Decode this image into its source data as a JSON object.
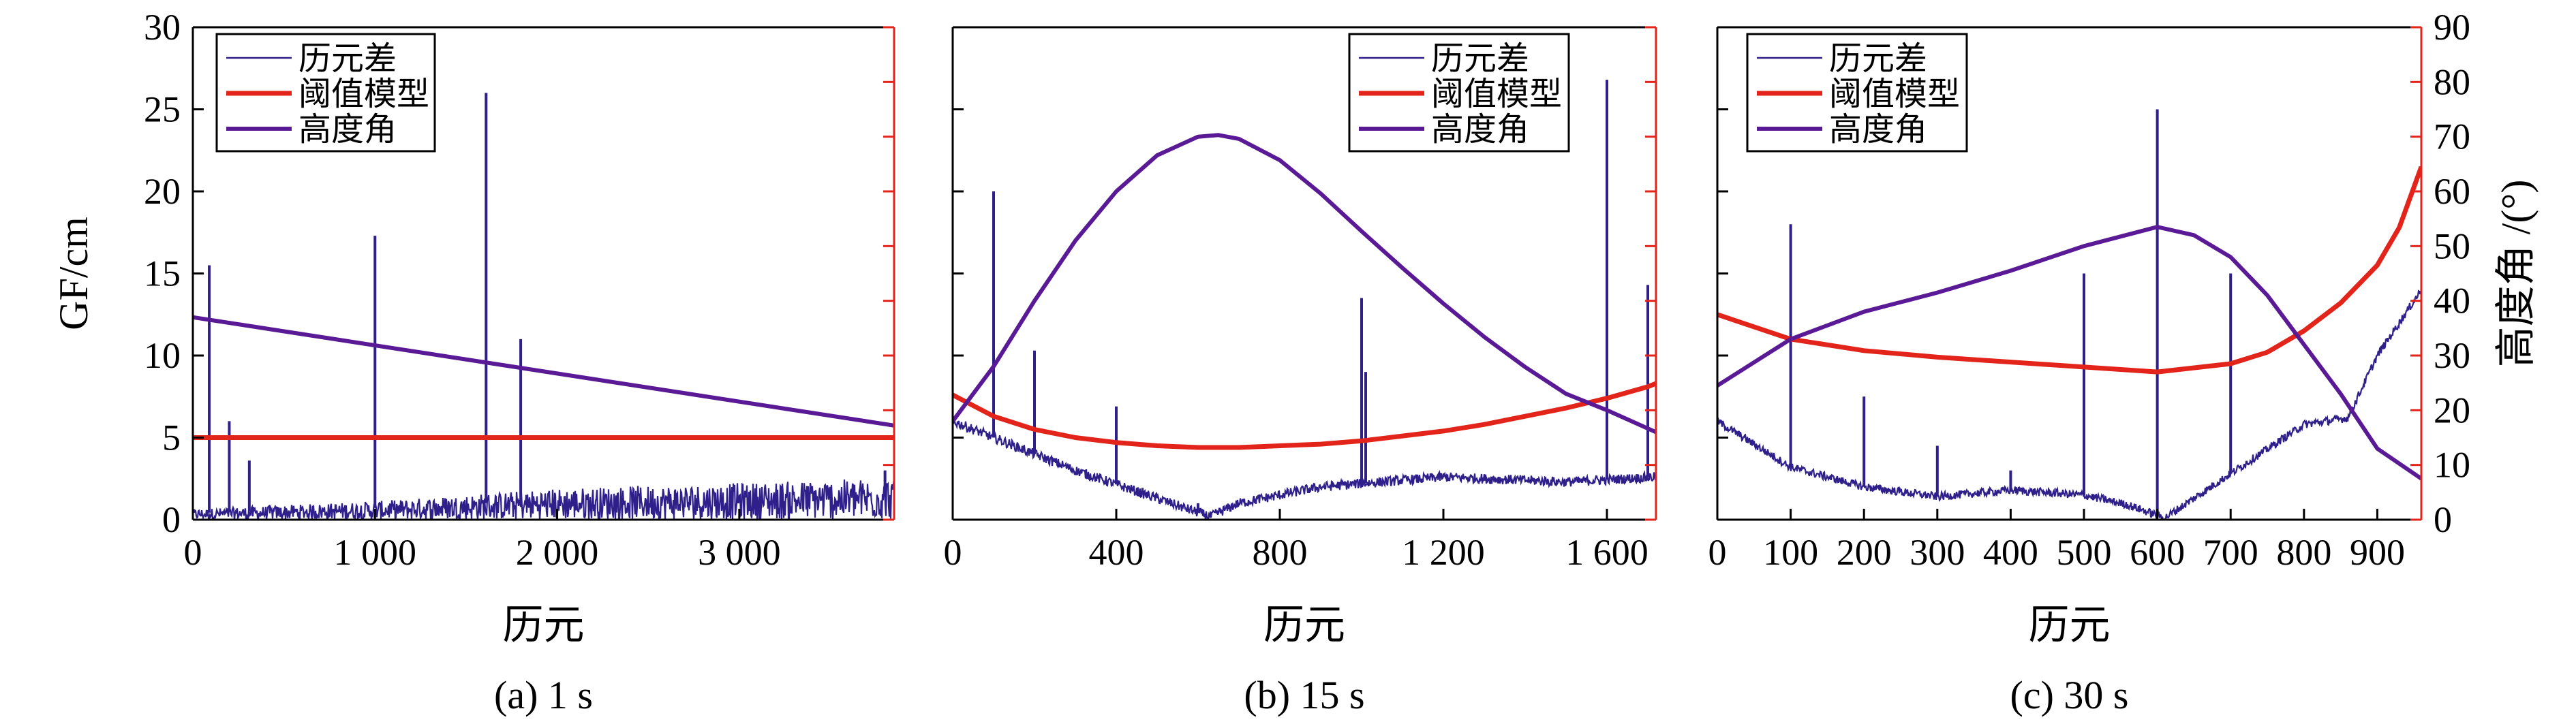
{
  "colors": {
    "difference": "#2e1f8a",
    "threshold": "#e3241b",
    "elevation": "#5a1a96",
    "right_axis": "#e3241b"
  },
  "chart_data": [
    {
      "type": "line",
      "caption": "(a) 1 s",
      "xlabel": "历元",
      "ylabel": "GF/cm",
      "xlim": [
        0,
        3850
      ],
      "ylim": [
        0,
        30
      ],
      "y2lim": [
        0,
        90
      ],
      "xticks": [
        0,
        1000,
        2000,
        3000
      ],
      "xtick_labels": [
        "0",
        "1 000",
        "2 000",
        "3 000"
      ],
      "yticks": [
        0,
        5,
        10,
        15,
        20,
        25,
        30
      ],
      "ytick_labels": [
        "0",
        "5",
        "10",
        "15",
        "20",
        "25",
        "30"
      ],
      "show_left_tick_labels": true,
      "show_right_tick_labels": false,
      "legend": [
        "历元差",
        "阈值模型",
        "高度角"
      ],
      "legend_position": "top-left",
      "series": [
        {
          "name": "历元差",
          "role": "difference",
          "baseline": [
            [
              0,
              0.4
            ],
            [
              1000,
              0.7
            ],
            [
              2000,
              1.2
            ],
            [
              3000,
              1.4
            ],
            [
              3850,
              1.6
            ]
          ],
          "noise": 0.9,
          "spikes": [
            [
              90,
              15.5
            ],
            [
              200,
              6.0
            ],
            [
              310,
              3.6
            ],
            [
              1000,
              17.3
            ],
            [
              1610,
              26.0
            ],
            [
              1800,
              11.0
            ],
            [
              3800,
              3.0
            ]
          ]
        },
        {
          "name": "阈值模型",
          "role": "threshold",
          "points": [
            [
              0,
              5.0
            ],
            [
              3850,
              5.0
            ]
          ]
        },
        {
          "name": "高度角",
          "role": "elevation",
          "points": [
            [
              0,
              37.0
            ],
            [
              3850,
              17.2
            ]
          ]
        }
      ]
    },
    {
      "type": "line",
      "caption": "(b) 15 s",
      "xlabel": "历元",
      "ylabel": "",
      "xlim": [
        0,
        1720
      ],
      "ylim": [
        0,
        30
      ],
      "y2lim": [
        0,
        90
      ],
      "xticks": [
        0,
        400,
        800,
        1200,
        1600
      ],
      "xtick_labels": [
        "0",
        "400",
        "800",
        "1 200",
        "1 600"
      ],
      "yticks": [
        0,
        5,
        10,
        15,
        20,
        25,
        30
      ],
      "ytick_labels": [
        "",
        "",
        "",
        "",
        "",
        "",
        ""
      ],
      "show_left_tick_labels": false,
      "show_right_tick_labels": false,
      "legend": [
        "历元差",
        "阈值模型",
        "高度角"
      ],
      "legend_position": "top-right",
      "series": [
        {
          "name": "历元差",
          "role": "difference",
          "baseline": [
            [
              0,
              6.0
            ],
            [
              100,
              5.0
            ],
            [
              300,
              3.0
            ],
            [
              500,
              1.3
            ],
            [
              580,
              0.6
            ],
            [
              630,
              0.2
            ],
            [
              700,
              1.0
            ],
            [
              900,
              2.0
            ],
            [
              1200,
              2.6
            ],
            [
              1500,
              2.3
            ],
            [
              1720,
              2.6
            ]
          ],
          "noise": 0.3,
          "spikes": [
            [
              100,
              20.0
            ],
            [
              200,
              10.3
            ],
            [
              400,
              6.9
            ],
            [
              600,
              1.0
            ],
            [
              1000,
              13.5
            ],
            [
              1010,
              9.0
            ],
            [
              1600,
              26.8
            ],
            [
              1700,
              14.3
            ]
          ]
        },
        {
          "name": "阈值模型",
          "role": "threshold",
          "points": [
            [
              0,
              7.6
            ],
            [
              100,
              6.3
            ],
            [
              200,
              5.5
            ],
            [
              300,
              5.0
            ],
            [
              400,
              4.7
            ],
            [
              500,
              4.5
            ],
            [
              600,
              4.4
            ],
            [
              700,
              4.4
            ],
            [
              800,
              4.5
            ],
            [
              900,
              4.6
            ],
            [
              1000,
              4.8
            ],
            [
              1100,
              5.1
            ],
            [
              1200,
              5.4
            ],
            [
              1300,
              5.8
            ],
            [
              1400,
              6.3
            ],
            [
              1500,
              6.8
            ],
            [
              1600,
              7.4
            ],
            [
              1700,
              8.1
            ],
            [
              1720,
              8.3
            ]
          ]
        },
        {
          "name": "高度角",
          "role": "elevation",
          "points": [
            [
              0,
              18.0
            ],
            [
              100,
              28.0
            ],
            [
              200,
              40.0
            ],
            [
              300,
              51.0
            ],
            [
              400,
              60.0
            ],
            [
              500,
              66.6
            ],
            [
              600,
              70.0
            ],
            [
              650,
              70.3
            ],
            [
              700,
              69.6
            ],
            [
              800,
              65.7
            ],
            [
              900,
              59.6
            ],
            [
              1000,
              52.7
            ],
            [
              1100,
              46.0
            ],
            [
              1200,
              39.5
            ],
            [
              1300,
              33.4
            ],
            [
              1400,
              27.9
            ],
            [
              1500,
              23.0
            ],
            [
              1600,
              20.0
            ],
            [
              1720,
              16.0
            ]
          ]
        }
      ]
    },
    {
      "type": "line",
      "caption": "(c) 30 s",
      "xlabel": "历元",
      "ylabel": "高度角 /(°)",
      "xlim": [
        0,
        960
      ],
      "ylim": [
        0,
        30
      ],
      "y2lim": [
        0,
        90
      ],
      "xticks": [
        0,
        100,
        200,
        300,
        400,
        500,
        600,
        700,
        800,
        900
      ],
      "xtick_labels": [
        "0",
        "100",
        "200",
        "300",
        "400",
        "500",
        "600",
        "700",
        "800",
        "900"
      ],
      "yticks": [
        0,
        5,
        10,
        15,
        20,
        25,
        30
      ],
      "ytick_labels": [
        "",
        "",
        "",
        "",
        "",
        "",
        ""
      ],
      "y2ticks": [
        0,
        10,
        20,
        30,
        40,
        50,
        60,
        70,
        80,
        90
      ],
      "y2tick_labels": [
        "0",
        "10",
        "20",
        "30",
        "40",
        "50",
        "60",
        "70",
        "80",
        "90"
      ],
      "show_left_tick_labels": false,
      "show_right_tick_labels": true,
      "legend": [
        "历元差",
        "阈值模型",
        "高度角"
      ],
      "legend_position": "top-left",
      "series": [
        {
          "name": "历元差",
          "role": "difference",
          "baseline": [
            [
              0,
              6.0
            ],
            [
              100,
              3.2
            ],
            [
              200,
              2.0
            ],
            [
              300,
              1.4
            ],
            [
              400,
              1.8
            ],
            [
              500,
              1.5
            ],
            [
              560,
              0.9
            ],
            [
              610,
              0.1
            ],
            [
              700,
              2.8
            ],
            [
              800,
              5.8
            ],
            [
              860,
              6.2
            ],
            [
              900,
              10.0
            ],
            [
              960,
              14.0
            ]
          ],
          "noise": 0.25,
          "spikes": [
            [
              100,
              18.0
            ],
            [
              200,
              7.5
            ],
            [
              300,
              4.5
            ],
            [
              400,
              3.0
            ],
            [
              500,
              15.0
            ],
            [
              600,
              25.0
            ],
            [
              700,
              15.0
            ]
          ]
        },
        {
          "name": "阈值模型",
          "role": "threshold",
          "points": [
            [
              0,
              12.5
            ],
            [
              100,
              11.0
            ],
            [
              200,
              10.3
            ],
            [
              300,
              9.9
            ],
            [
              400,
              9.6
            ],
            [
              500,
              9.3
            ],
            [
              600,
              9.0
            ],
            [
              700,
              9.5
            ],
            [
              750,
              10.2
            ],
            [
              800,
              11.5
            ],
            [
              850,
              13.2
            ],
            [
              900,
              15.5
            ],
            [
              930,
              17.8
            ],
            [
              960,
              21.5
            ]
          ]
        },
        {
          "name": "高度角",
          "role": "elevation",
          "points": [
            [
              0,
              24.5
            ],
            [
              100,
              33.0
            ],
            [
              200,
              38.0
            ],
            [
              300,
              41.5
            ],
            [
              400,
              45.5
            ],
            [
              500,
              50.0
            ],
            [
              600,
              53.5
            ],
            [
              650,
              52.0
            ],
            [
              700,
              48.0
            ],
            [
              750,
              41.0
            ],
            [
              800,
              32.0
            ],
            [
              850,
              23.0
            ],
            [
              900,
              13.0
            ],
            [
              960,
              7.5
            ]
          ]
        }
      ]
    }
  ]
}
